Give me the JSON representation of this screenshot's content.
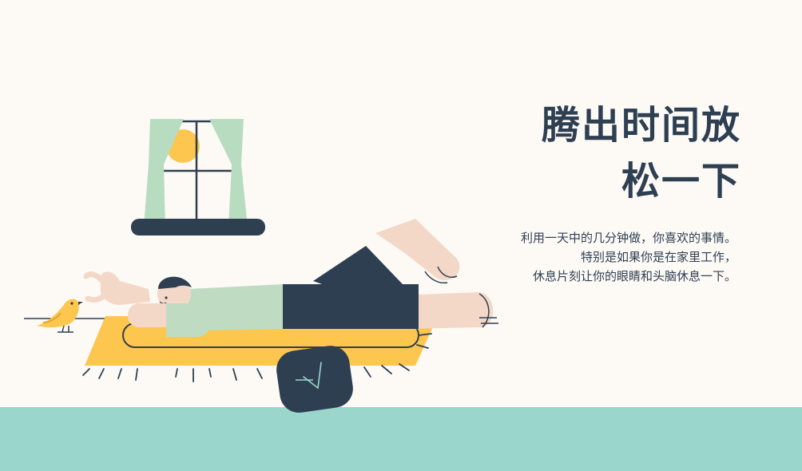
{
  "headline": {
    "line1": "腾出时间放",
    "line2": "松一下"
  },
  "body": {
    "line1": "利用一天中的几分钟做，你喜欢的事情。",
    "line2": "特别是如果你是在家里工作，",
    "line3": "休息片刻让你的眼睛和头脑休息一下。"
  },
  "colors": {
    "background": "#fdfaf6",
    "floor": "#9ad6cc",
    "navy": "#2e3f52",
    "mat_yellow": "#fdc64e",
    "sun_yellow": "#fdc64e",
    "curtain_green": "#b8dcc0",
    "skin": "#f3d8c8",
    "shirt_green": "#bfdcc2"
  },
  "illustration": {
    "icons": [
      "window-icon",
      "sun-icon",
      "curtain-icon",
      "person-lying-icon",
      "mat-icon",
      "bird-icon",
      "laptop-icon"
    ]
  }
}
